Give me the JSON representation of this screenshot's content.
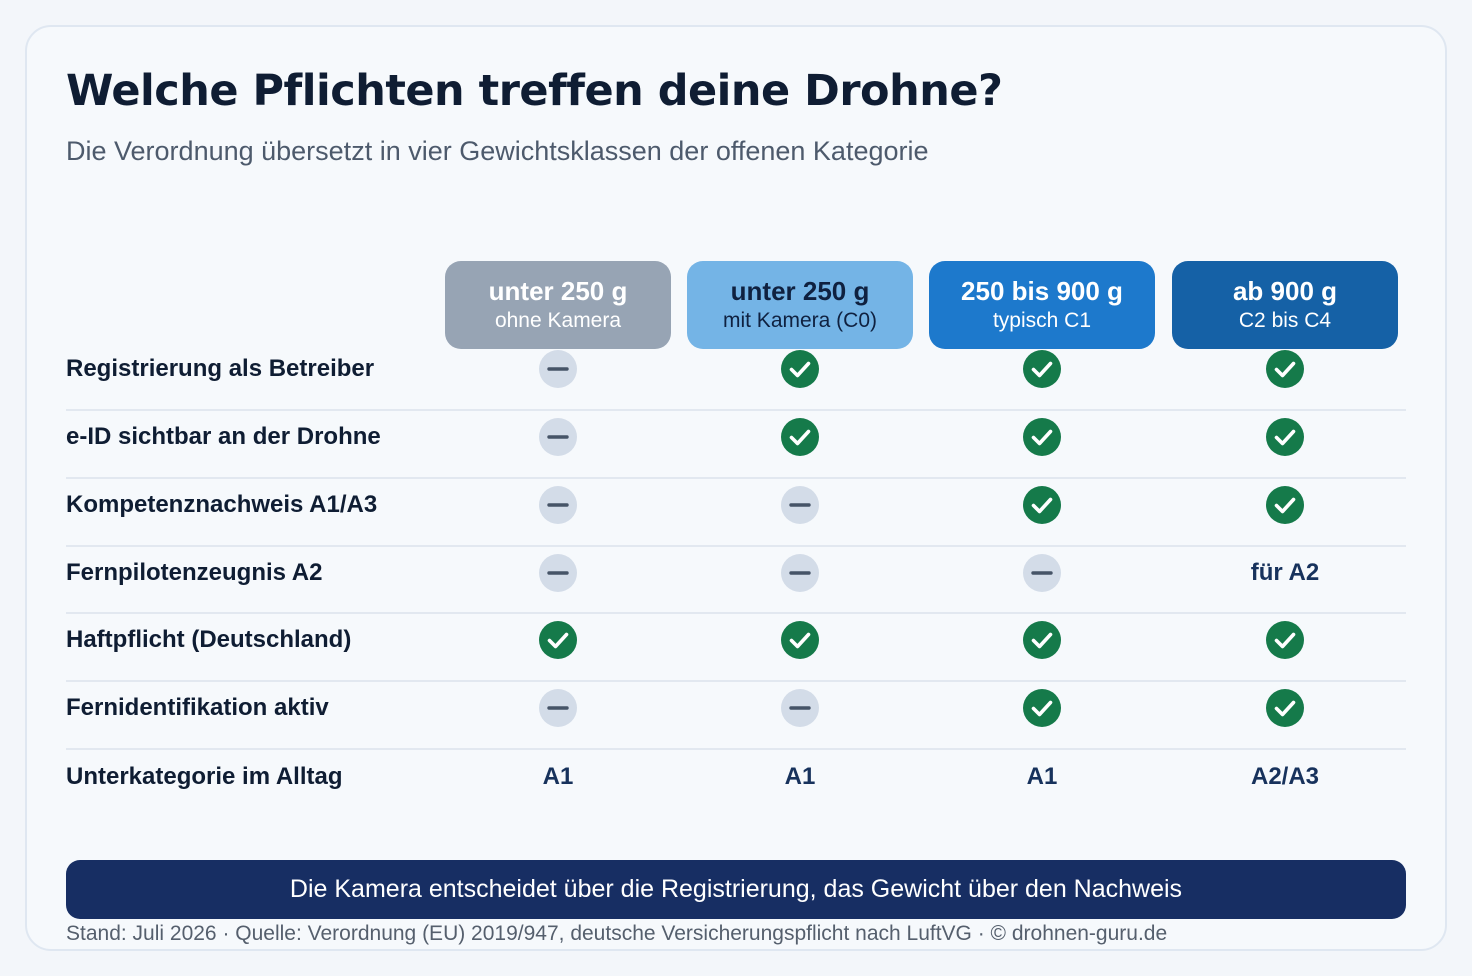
{
  "title": "Welche Pflichten treffen deine Drohne?",
  "subtitle": "Die Verordnung übersetzt in vier Gewichtsklassen der offenen Kategorie",
  "columns": [
    {
      "main": "unter 250 g",
      "sub": "ohne Kamera",
      "bg": "#97a4b4",
      "color": "#ffffff"
    },
    {
      "main": "unter 250 g",
      "sub": "mit Kamera (C0)",
      "bg": "#74b4e6",
      "color": "#0f2140"
    },
    {
      "main": "250 bis 900 g",
      "sub": "typisch C1",
      "bg": "#1d79cc",
      "color": "#ffffff"
    },
    {
      "main": "ab 900 g",
      "sub": "C2 bis C4",
      "bg": "#1561a6",
      "color": "#ffffff"
    }
  ],
  "rows": [
    {
      "label": "Registrierung als Betreiber",
      "cells": [
        "no",
        "yes",
        "yes",
        "yes"
      ]
    },
    {
      "label": "e-ID sichtbar an der Drohne",
      "cells": [
        "no",
        "yes",
        "yes",
        "yes"
      ]
    },
    {
      "label": "Kompetenznachweis A1/A3",
      "cells": [
        "no",
        "no",
        "yes",
        "yes"
      ]
    },
    {
      "label": "Fernpilotenzeugnis A2",
      "cells": [
        "no",
        "no",
        "no",
        "für A2"
      ]
    },
    {
      "label": "Haftpflicht (Deutschland)",
      "cells": [
        "yes",
        "yes",
        "yes",
        "yes"
      ]
    },
    {
      "label": "Fernidentifikation aktiv",
      "cells": [
        "no",
        "no",
        "yes",
        "yes"
      ]
    },
    {
      "label": "Unterkategorie im Alltag",
      "cells": [
        "A1",
        "A1",
        "A1",
        "A2/A3"
      ]
    }
  ],
  "icons": {
    "yes": "check-circle-icon",
    "no": "dash-circle-icon"
  },
  "colors": {
    "check": "#157a4a",
    "dash_bg": "#d3dce8",
    "dash_line": "#465467",
    "banner": "#172e63"
  },
  "banner": "Die Kamera entscheidet über die Registrierung, das Gewicht über den Nachweis",
  "footer": "Stand: Juli 2026 · Quelle: Verordnung (EU) 2019/947, deutsche Versicherungspflicht nach LuftVG · © drohnen-guru.de"
}
